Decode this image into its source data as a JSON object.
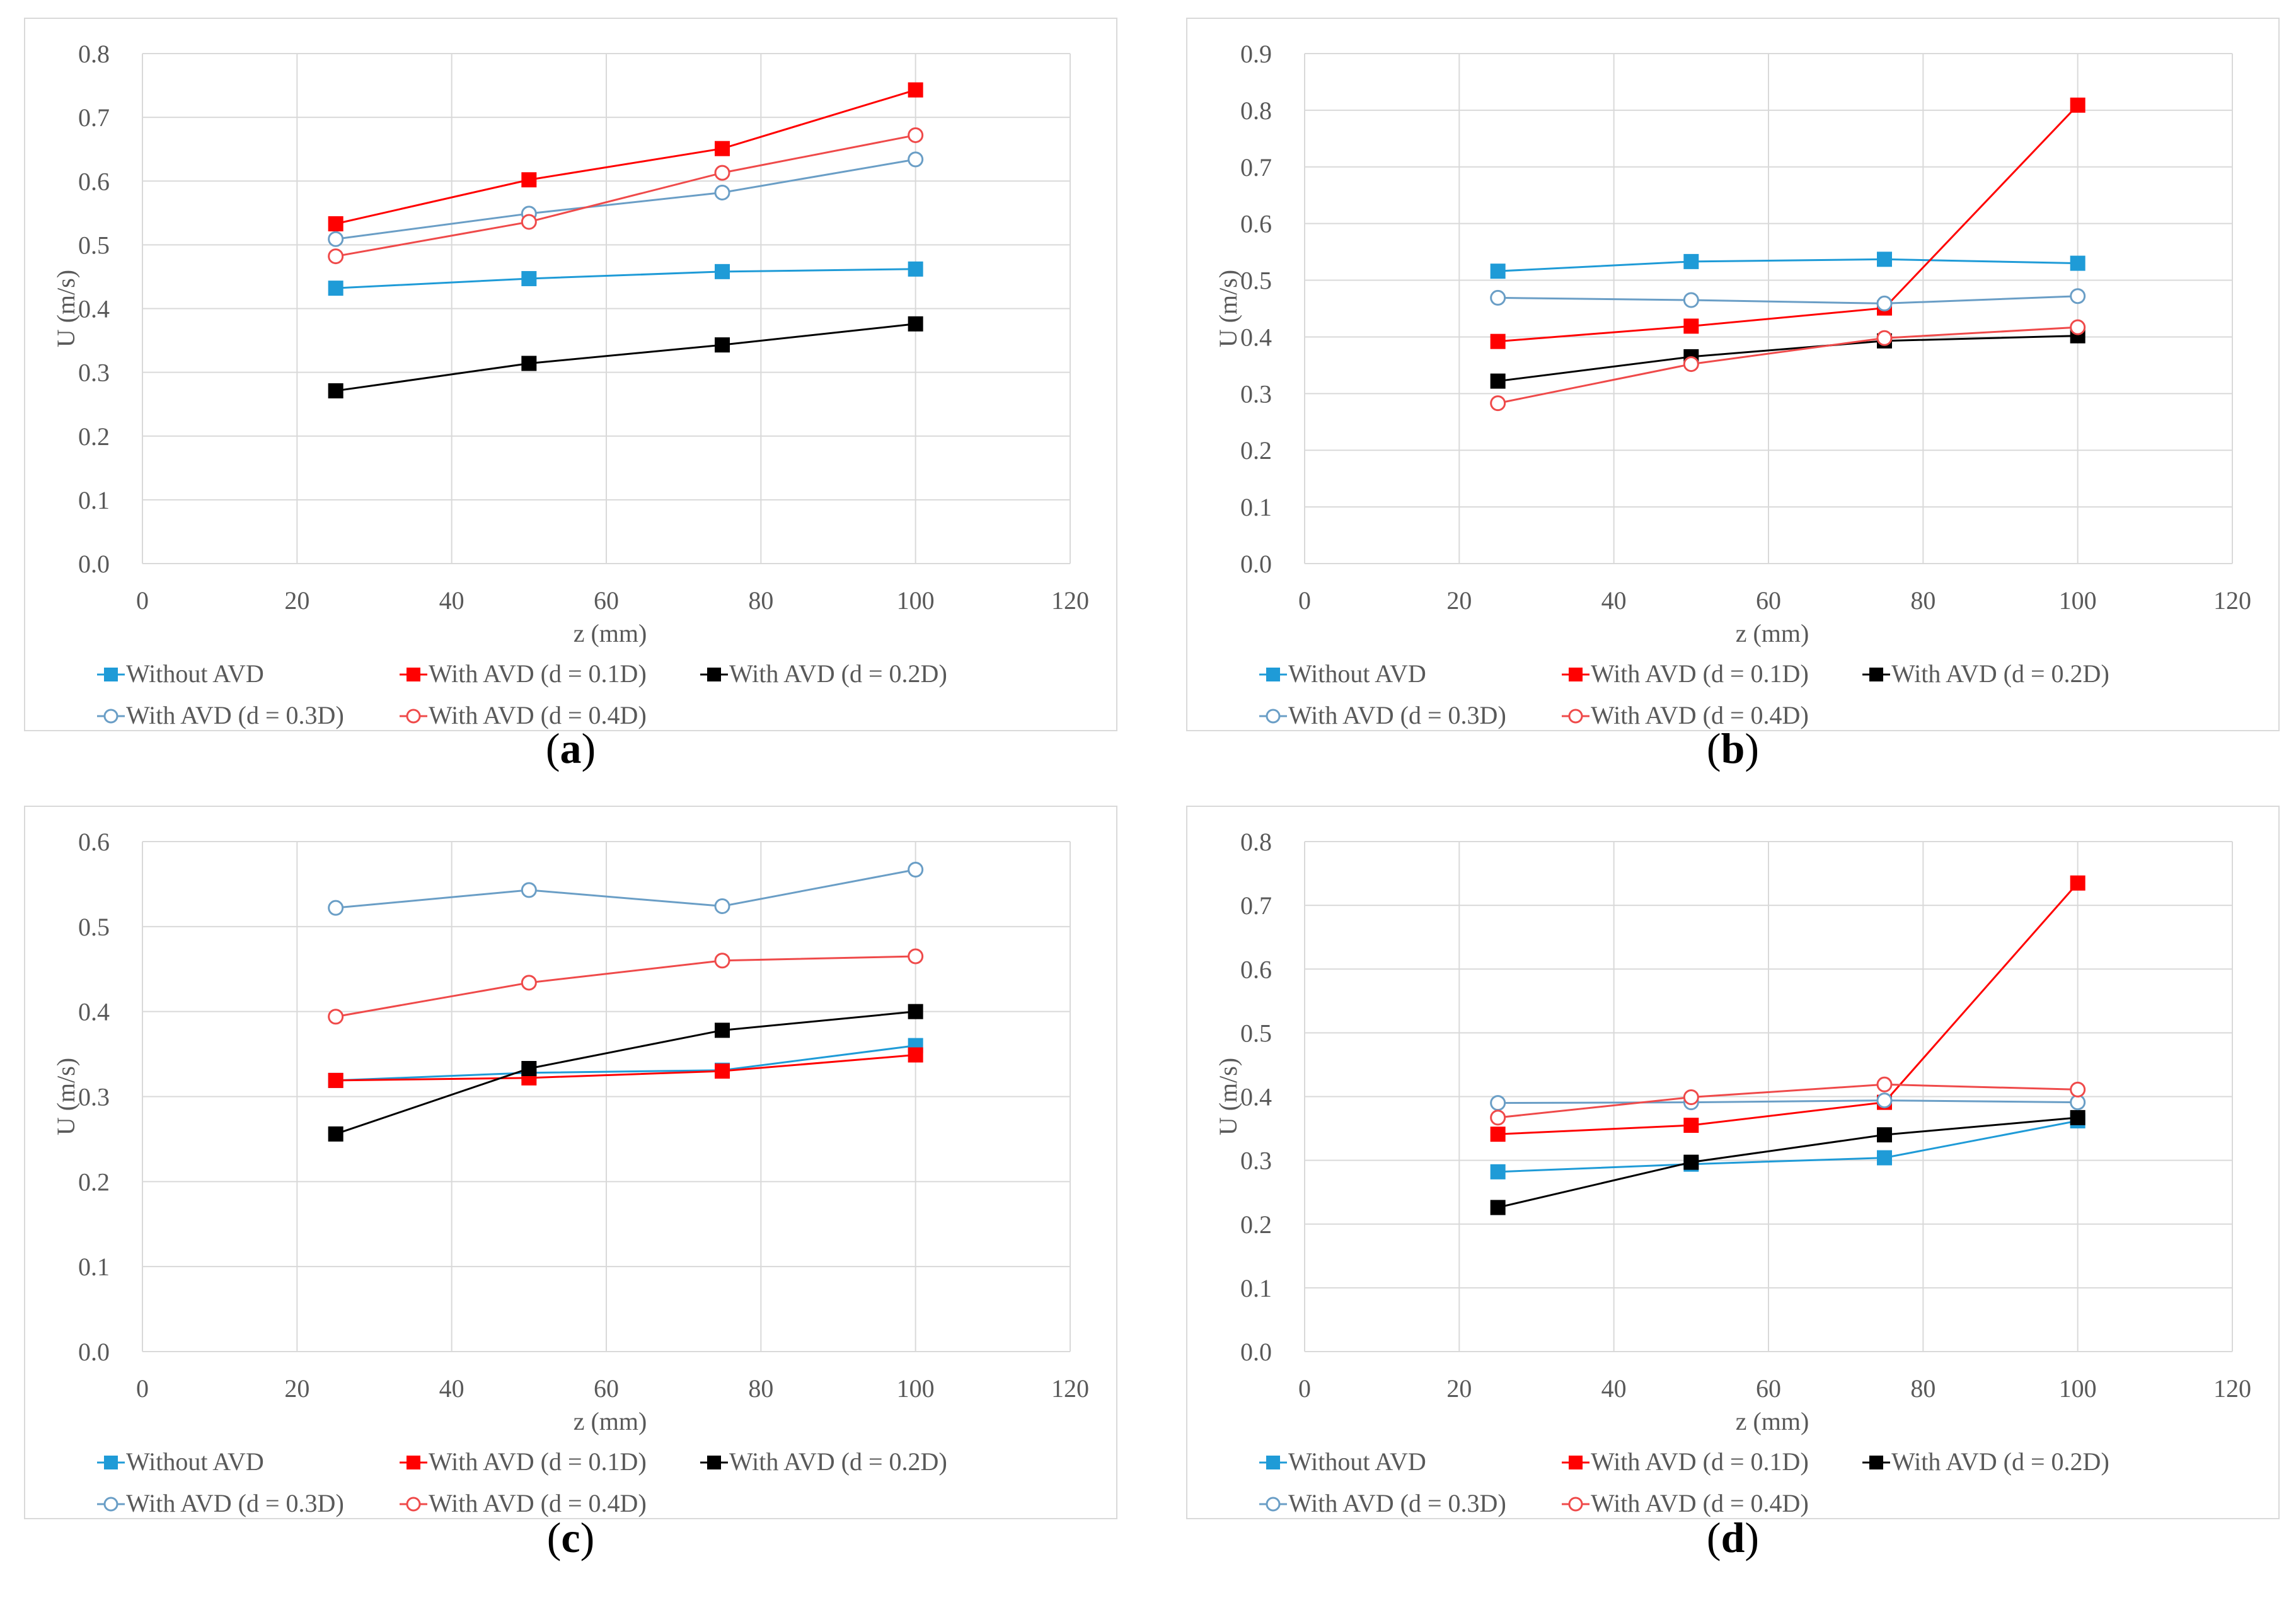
{
  "series_styles": [
    {
      "color": "#1f9bd7",
      "marker": "square"
    },
    {
      "color": "#ff0000",
      "marker": "square"
    },
    {
      "color": "#000000",
      "marker": "square"
    },
    {
      "color": "#6a9ec6",
      "marker": "circle"
    },
    {
      "color": "#ef4a4a",
      "marker": "circle"
    }
  ],
  "chart_data": [
    {
      "type": "line",
      "panel": "a",
      "caption_open": "(",
      "caption_letter": "a",
      "caption_close": ")",
      "xlabel": "z (mm)",
      "ylabel": "U (m/s)",
      "xlim": [
        0,
        120
      ],
      "ylim": [
        0,
        0.8
      ],
      "xstep": 20,
      "ystep": 0.1,
      "x_ticks": [
        "0",
        "20",
        "40",
        "60",
        "80",
        "100",
        "120"
      ],
      "y_ticks": [
        "0.0",
        "0.1",
        "0.2",
        "0.3",
        "0.4",
        "0.5",
        "0.6",
        "0.7",
        "0.8"
      ],
      "x": [
        25,
        50,
        75,
        100
      ],
      "series": [
        {
          "name": "Without AVD",
          "values": [
            0.432,
            0.447,
            0.458,
            0.462
          ]
        },
        {
          "name": "With AVD (d = 0.1D)",
          "values": [
            0.533,
            0.602,
            0.651,
            0.743
          ]
        },
        {
          "name": "With AVD (d = 0.2D)",
          "values": [
            0.271,
            0.314,
            0.343,
            0.376
          ]
        },
        {
          "name": "With AVD (d = 0.3D)",
          "values": [
            0.509,
            0.549,
            0.582,
            0.634
          ]
        },
        {
          "name": "With AVD (d = 0.4D)",
          "values": [
            0.482,
            0.536,
            0.613,
            0.672
          ]
        }
      ]
    },
    {
      "type": "line",
      "panel": "b",
      "caption_open": "(",
      "caption_letter": "b",
      "caption_close": ")",
      "xlabel": "z (mm)",
      "ylabel": "U (m/s)",
      "xlim": [
        0,
        120
      ],
      "ylim": [
        0,
        0.9
      ],
      "xstep": 20,
      "ystep": 0.1,
      "x_ticks": [
        "0",
        "20",
        "40",
        "60",
        "80",
        "100",
        "120"
      ],
      "y_ticks": [
        "0.0",
        "0.1",
        "0.2",
        "0.3",
        "0.4",
        "0.5",
        "0.6",
        "0.7",
        "0.8",
        "0.9"
      ],
      "x": [
        25,
        50,
        75,
        100
      ],
      "series": [
        {
          "name": "Without AVD",
          "values": [
            0.516,
            0.533,
            0.537,
            0.53
          ]
        },
        {
          "name": "With AVD (d = 0.1D)",
          "values": [
            0.392,
            0.419,
            0.451,
            0.809
          ]
        },
        {
          "name": "With AVD (d = 0.2D)",
          "values": [
            0.322,
            0.365,
            0.393,
            0.402
          ]
        },
        {
          "name": "With AVD (d = 0.3D)",
          "values": [
            0.469,
            0.465,
            0.459,
            0.472
          ]
        },
        {
          "name": "With AVD (d = 0.4D)",
          "values": [
            0.283,
            0.352,
            0.398,
            0.417
          ]
        }
      ]
    },
    {
      "type": "line",
      "panel": "c",
      "caption_open": "(",
      "caption_letter": "c",
      "caption_close": ")",
      "xlabel": "z (mm)",
      "ylabel": "U (m/s)",
      "xlim": [
        0,
        120
      ],
      "ylim": [
        0,
        0.6
      ],
      "xstep": 20,
      "ystep": 0.1,
      "x_ticks": [
        "0",
        "20",
        "40",
        "60",
        "80",
        "100",
        "120"
      ],
      "y_ticks": [
        "0.0",
        "0.1",
        "0.2",
        "0.3",
        "0.4",
        "0.5",
        "0.6"
      ],
      "x": [
        25,
        50,
        75,
        100
      ],
      "series": [
        {
          "name": "Without AVD",
          "values": [
            0.319,
            0.328,
            0.331,
            0.36
          ]
        },
        {
          "name": "With AVD (d = 0.1D)",
          "values": [
            0.319,
            0.322,
            0.33,
            0.349
          ]
        },
        {
          "name": "With AVD (d = 0.2D)",
          "values": [
            0.256,
            0.333,
            0.378,
            0.4
          ]
        },
        {
          "name": "With AVD (d = 0.3D)",
          "values": [
            0.522,
            0.543,
            0.524,
            0.567
          ]
        },
        {
          "name": "With AVD (d = 0.4D)",
          "values": [
            0.394,
            0.434,
            0.46,
            0.465
          ]
        }
      ]
    },
    {
      "type": "line",
      "panel": "d",
      "caption_open": "(",
      "caption_letter": "d",
      "caption_close": ")",
      "xlabel": "z (mm)",
      "ylabel": "U (m/s)",
      "xlim": [
        0,
        120
      ],
      "ylim": [
        0,
        0.8
      ],
      "xstep": 20,
      "ystep": 0.1,
      "x_ticks": [
        "0",
        "20",
        "40",
        "60",
        "80",
        "100",
        "120"
      ],
      "y_ticks": [
        "0.0",
        "0.1",
        "0.2",
        "0.3",
        "0.4",
        "0.5",
        "0.6",
        "0.7",
        "0.8"
      ],
      "x": [
        25,
        50,
        75,
        100
      ],
      "series": [
        {
          "name": "Without AVD",
          "values": [
            0.282,
            0.294,
            0.304,
            0.362
          ]
        },
        {
          "name": "With AVD (d = 0.1D)",
          "values": [
            0.341,
            0.355,
            0.391,
            0.735
          ]
        },
        {
          "name": "With AVD (d = 0.2D)",
          "values": [
            0.226,
            0.297,
            0.34,
            0.367
          ]
        },
        {
          "name": "With AVD (d = 0.3D)",
          "values": [
            0.39,
            0.391,
            0.394,
            0.391
          ]
        },
        {
          "name": "With AVD (d = 0.4D)",
          "values": [
            0.367,
            0.399,
            0.419,
            0.411
          ]
        }
      ]
    }
  ]
}
